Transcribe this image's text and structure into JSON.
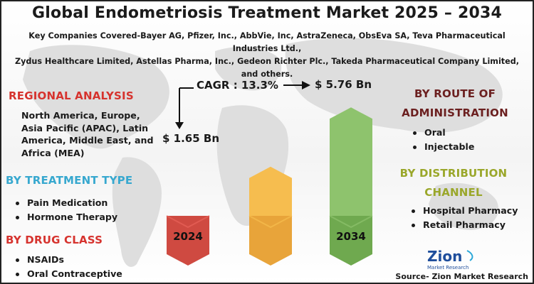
{
  "title": "Global Endometriosis Treatment Market 2025 – 2034",
  "companies_line1": "Key Companies Covered-Bayer AG, Pfizer, Inc., AbbVie, Inc, AstraZeneca, ObsEva SA, Teva Pharmaceutical Industries Ltd.,",
  "companies_line2": "Zydus Healthcare Limited, Astellas Pharma, Inc., Gedeon Richter Plc., Takeda Pharmaceutical Company Limited, and others.",
  "regional": {
    "title": "REGIONAL ANALYSIS",
    "text": "North America, Europe, Asia Pacific (APAC), Latin America, Middle East, and Africa (MEA)"
  },
  "treatment_type": {
    "title": "BY TREATMENT TYPE",
    "items": [
      "Pain Medication",
      "Hormone Therapy"
    ]
  },
  "drug_class": {
    "title": "BY DRUG CLASS",
    "items": [
      "NSAIDs",
      "Oral Contraceptive"
    ]
  },
  "route": {
    "title_line1": "BY ROUTE OF",
    "title_line2": "ADMINISTRATION",
    "items": [
      "Oral",
      "Injectable"
    ]
  },
  "distribution": {
    "title_line1": "BY DISTRIBUTION",
    "title_line2": "CHANNEL",
    "items": [
      "Hospital Pharmacy",
      "Retail Pharmacy"
    ]
  },
  "cagr_label": "CAGR : 13.3%",
  "source": "Source- Zion Market Research",
  "logo": {
    "name": "Zion",
    "tagline": "Market Research"
  },
  "colors": {
    "red_section": "#d6332e",
    "blue_section": "#37a8cf",
    "route_section": "#6b1f1f",
    "distribution_section": "#9aa72a"
  },
  "chart_data": {
    "type": "bar",
    "categories": [
      "2024",
      "",
      "2034"
    ],
    "values": [
      1.65,
      3.6,
      5.76
    ],
    "value_labels": [
      "$ 1.65 Bn",
      "",
      "$ 5.76 Bn"
    ],
    "bar_colors": [
      "#e8625a",
      "#f6bd4f",
      "#8ec36d"
    ],
    "cap_colors": [
      "#cf4a41",
      "#e8a43a",
      "#6fa94f"
    ],
    "ylim": [
      0,
      6
    ]
  }
}
